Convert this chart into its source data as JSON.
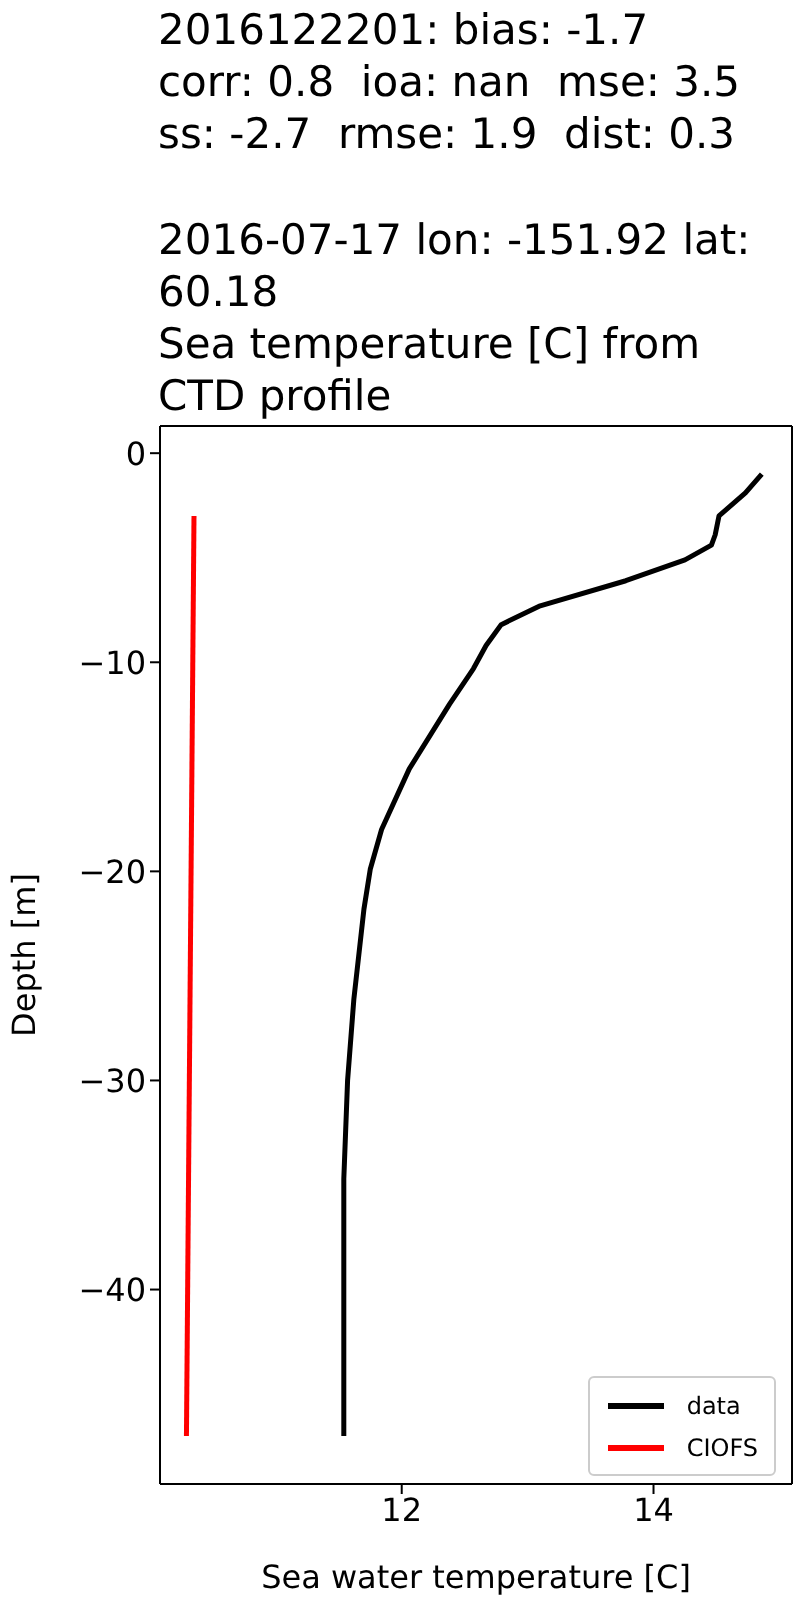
{
  "chart_data": {
    "type": "line",
    "title": "2016122201: bias: -1.7\ncorr: 0.8  ioa: nan  mse: 3.5\nss: -2.7  rmse: 1.9  dist: 0.3\n\n2016-07-17 lon: -151.92 lat:\n60.18\nSea temperature [C] from\nCTD profile",
    "xlabel": "Sea water temperature [C]",
    "ylabel": "Depth [m]",
    "series": [
      {
        "name": "data",
        "color": "#000000",
        "x": [
          14.86,
          14.73,
          14.52,
          14.49,
          14.46,
          14.25,
          13.78,
          13.1,
          12.79,
          12.67,
          12.57,
          12.38,
          12.06,
          11.84,
          11.75,
          11.7,
          11.62,
          11.57,
          11.54,
          11.54,
          11.54
        ],
        "values": [
          -1,
          -1.9,
          -3,
          -3.9,
          -4.4,
          -5.1,
          -6.1,
          -7.3,
          -8.2,
          -9.2,
          -10.3,
          -12,
          -15.1,
          -18,
          -19.9,
          -21.8,
          -26.1,
          -30,
          -34.7,
          -41.4,
          -47
        ]
      },
      {
        "name": "CIOFS",
        "color": "#ff0000",
        "x": [
          10.35,
          10.29
        ],
        "values": [
          -3,
          -47
        ]
      }
    ],
    "xlim": [
      10.08,
      15.1
    ],
    "xticks": [
      12,
      14
    ],
    "ylim": [
      -49.3,
      1.3
    ],
    "yticks": [
      {
        "value": 0,
        "label": "0"
      },
      {
        "value": -10,
        "label": "−10"
      },
      {
        "value": -20,
        "label": "−20"
      },
      {
        "value": -30,
        "label": "−30"
      },
      {
        "value": -40,
        "label": "−40"
      }
    ],
    "legend": "bottom right",
    "marker": "none",
    "line_style": "solid"
  }
}
